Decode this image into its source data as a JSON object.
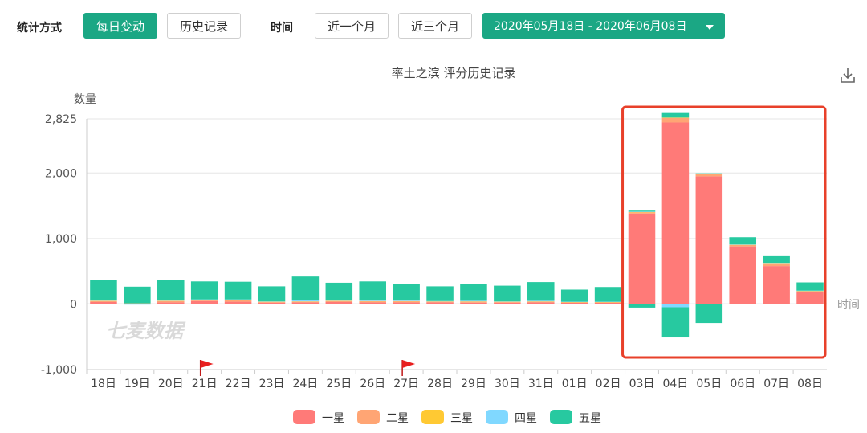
{
  "toolbar": {
    "stat_method_label": "统计方式",
    "daily_change_label": "每日变动",
    "history_label": "历史记录",
    "time_label": "时间",
    "last_month_label": "近一个月",
    "last_three_months_label": "近三个月",
    "date_range": "2020年05月18日 - 2020年06月08日"
  },
  "colors": {
    "accent": "#1ba784",
    "highlight_box": "#e8402a",
    "one_star": "#ff7a78",
    "two_star": "#ffa574",
    "three_star": "#ffc933",
    "four_star": "#80d8ff",
    "five_star": "#27c9a0"
  },
  "icons": {
    "download": "download-icon",
    "flag": "red-flag-icon"
  },
  "watermark": "七麦数据",
  "chart_data": {
    "type": "bar",
    "stacked": true,
    "title": "率土之滨 评分历史记录",
    "ylabel": "数量",
    "xlabel": "时间",
    "ylim": [
      -1000,
      2825
    ],
    "yticks": [
      2825,
      2000,
      1000,
      0,
      -1000
    ],
    "ytick_labels": [
      "2,825",
      "2,000",
      "1,000",
      "0",
      "-1,000"
    ],
    "grid": true,
    "legend_position": "bottom",
    "categories": [
      "18日",
      "19日",
      "20日",
      "21日",
      "22日",
      "23日",
      "24日",
      "25日",
      "26日",
      "27日",
      "28日",
      "29日",
      "30日",
      "31日",
      "01日",
      "02日",
      "03日",
      "04日",
      "05日",
      "06日",
      "07日",
      "08日"
    ],
    "flags_at": [
      "21日",
      "27日"
    ],
    "highlight_range": [
      "03日",
      "08日"
    ],
    "series": [
      {
        "name": "一星",
        "color": "#ff7a78",
        "values": [
          30,
          5,
          25,
          45,
          35,
          20,
          25,
          30,
          25,
          25,
          25,
          20,
          20,
          25,
          20,
          20,
          1380,
          2770,
          1950,
          880,
          580,
          180
        ]
      },
      {
        "name": "二星",
        "color": "#ffa574",
        "values": [
          15,
          5,
          20,
          15,
          20,
          10,
          10,
          15,
          15,
          15,
          10,
          15,
          10,
          10,
          5,
          5,
          20,
          70,
          30,
          20,
          30,
          15
        ]
      },
      {
        "name": "三星",
        "color": "#ffc933",
        "values": [
          5,
          0,
          5,
          5,
          5,
          5,
          5,
          5,
          5,
          5,
          5,
          5,
          5,
          5,
          5,
          5,
          5,
          5,
          5,
          5,
          5,
          5
        ]
      },
      {
        "name": "四星",
        "color": "#80d8ff",
        "values": [
          10,
          -10,
          15,
          5,
          10,
          5,
          15,
          10,
          15,
          10,
          5,
          10,
          5,
          10,
          5,
          5,
          5,
          -50,
          0,
          5,
          5,
          5
        ]
      },
      {
        "name": "五星",
        "color": "#27c9a0",
        "values": [
          310,
          255,
          300,
          275,
          270,
          230,
          365,
          265,
          285,
          250,
          225,
          260,
          240,
          285,
          185,
          225,
          15,
          70,
          10,
          110,
          110,
          125
        ]
      },
      {
        "name": "五星",
        "color": "#27c9a0",
        "legend": false,
        "values": [
          0,
          0,
          0,
          0,
          0,
          0,
          0,
          0,
          0,
          0,
          0,
          0,
          0,
          0,
          0,
          0,
          -55,
          -460,
          -290,
          0,
          0,
          0
        ]
      }
    ]
  }
}
